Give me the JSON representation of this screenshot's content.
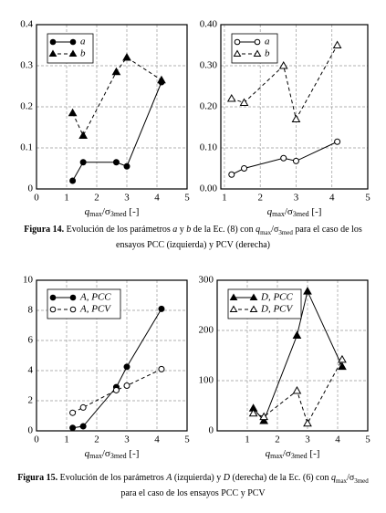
{
  "chart_data": [
    {
      "type": "line",
      "xlabel_parts": [
        "q",
        "max",
        "/σ",
        "3med",
        " [-]"
      ],
      "xlim": [
        0,
        5
      ],
      "xticks": [
        0,
        1,
        2,
        3,
        4,
        5
      ],
      "ylim": [
        0,
        0.4
      ],
      "yticks": [
        0,
        0.1,
        0.2,
        0.3,
        0.4
      ],
      "grid": true,
      "legend": "upper left",
      "series": [
        {
          "name": "a",
          "color": "#000000",
          "marker": "filled-circle",
          "dash": "solid",
          "x": [
            1.2,
            1.55,
            2.65,
            3.0,
            4.15
          ],
          "values": [
            0.02,
            0.065,
            0.065,
            0.055,
            0.26
          ]
        },
        {
          "name": "b",
          "color": "#000000",
          "marker": "filled-triangle",
          "dash": "dashed",
          "x": [
            1.2,
            1.55,
            2.65,
            3.0,
            4.15
          ],
          "values": [
            0.185,
            0.13,
            0.285,
            0.32,
            0.265
          ]
        }
      ]
    },
    {
      "type": "line",
      "xlabel_parts": [
        "q",
        "max",
        "/σ",
        "3med",
        " [-]"
      ],
      "xlim": [
        0.9,
        5
      ],
      "xticks": [
        1,
        2,
        3,
        4,
        5
      ],
      "ylim": [
        0,
        0.4
      ],
      "yticks": [
        {
          "value": 0,
          "label": "0.00"
        },
        {
          "value": 0.1,
          "label": "0.10"
        },
        {
          "value": 0.2,
          "label": "0.20"
        },
        {
          "value": 0.3,
          "label": "0.30"
        },
        {
          "value": 0.4,
          "label": "0.40"
        }
      ],
      "grid": true,
      "legend": "upper left",
      "series": [
        {
          "name": "a",
          "color": "#000000",
          "marker": "open-circle",
          "dash": "solid",
          "x": [
            1.2,
            1.55,
            2.65,
            3.0,
            4.15
          ],
          "values": [
            0.035,
            0.05,
            0.075,
            0.068,
            0.115
          ]
        },
        {
          "name": "b",
          "color": "#000000",
          "marker": "open-triangle",
          "dash": "dashed",
          "x": [
            1.2,
            1.55,
            2.65,
            3.0,
            4.15
          ],
          "values": [
            0.22,
            0.21,
            0.3,
            0.17,
            0.35
          ]
        }
      ]
    },
    {
      "type": "line",
      "xlabel_parts": [
        "q",
        "max",
        "/σ",
        "3med",
        " [-]"
      ],
      "xlim": [
        0,
        5
      ],
      "xticks": [
        0,
        1,
        2,
        3,
        4,
        5
      ],
      "ylim": [
        0,
        10
      ],
      "yticks": [
        0,
        2,
        4,
        6,
        8,
        10
      ],
      "grid": true,
      "legend": "upper left",
      "series": [
        {
          "name": "A, PCC",
          "color": "#000000",
          "marker": "filled-circle",
          "dash": "solid",
          "x": [
            1.2,
            1.55,
            2.65,
            3.0,
            4.15
          ],
          "values": [
            0.2,
            0.3,
            2.9,
            4.25,
            8.1
          ]
        },
        {
          "name": "A, PCV",
          "color": "#000000",
          "marker": "open-circle",
          "dash": "dashed",
          "x": [
            1.2,
            1.55,
            2.65,
            3.0,
            4.15
          ],
          "values": [
            1.2,
            1.55,
            2.7,
            3.0,
            4.1
          ]
        }
      ]
    },
    {
      "type": "line",
      "xlabel_parts": [
        "q",
        "max",
        "/σ",
        "3med",
        " [-]"
      ],
      "xlim": [
        0,
        5
      ],
      "xticks": [
        1,
        2,
        3,
        4,
        5
      ],
      "ylim": [
        0,
        300
      ],
      "yticks": [
        0,
        100,
        200,
        300
      ],
      "grid": true,
      "legend": "upper left",
      "series": [
        {
          "name": "D, PCC",
          "color": "#000000",
          "marker": "filled-triangle",
          "dash": "solid",
          "x": [
            1.2,
            1.55,
            2.65,
            3.0,
            4.15
          ],
          "values": [
            45,
            20,
            190,
            278,
            128
          ]
        },
        {
          "name": "D, PCV",
          "color": "#000000",
          "marker": "open-triangle",
          "dash": "dashed",
          "x": [
            1.2,
            1.55,
            2.65,
            3.0,
            4.15
          ],
          "values": [
            35,
            28,
            80,
            15,
            142
          ]
        }
      ]
    }
  ],
  "captions": [
    {
      "label": "Figura 14.",
      "parts": [
        " Evolución de los parámetros ",
        "a",
        " y ",
        "b",
        " de la Ec. (8) con ",
        "q",
        "max",
        "/σ",
        "3med",
        " para el caso de los ensayos PCC (izquierda) y PCV (derecha)"
      ]
    },
    {
      "label": "Figura 15.",
      "parts": [
        " Evolución de los parámetros ",
        "A",
        " (izquierda) y ",
        "D",
        " (derecha) de la Ec. (6) con ",
        "q",
        "max",
        "/σ",
        "3med",
        " para el caso de los ensayos PCC y PCV"
      ]
    }
  ]
}
